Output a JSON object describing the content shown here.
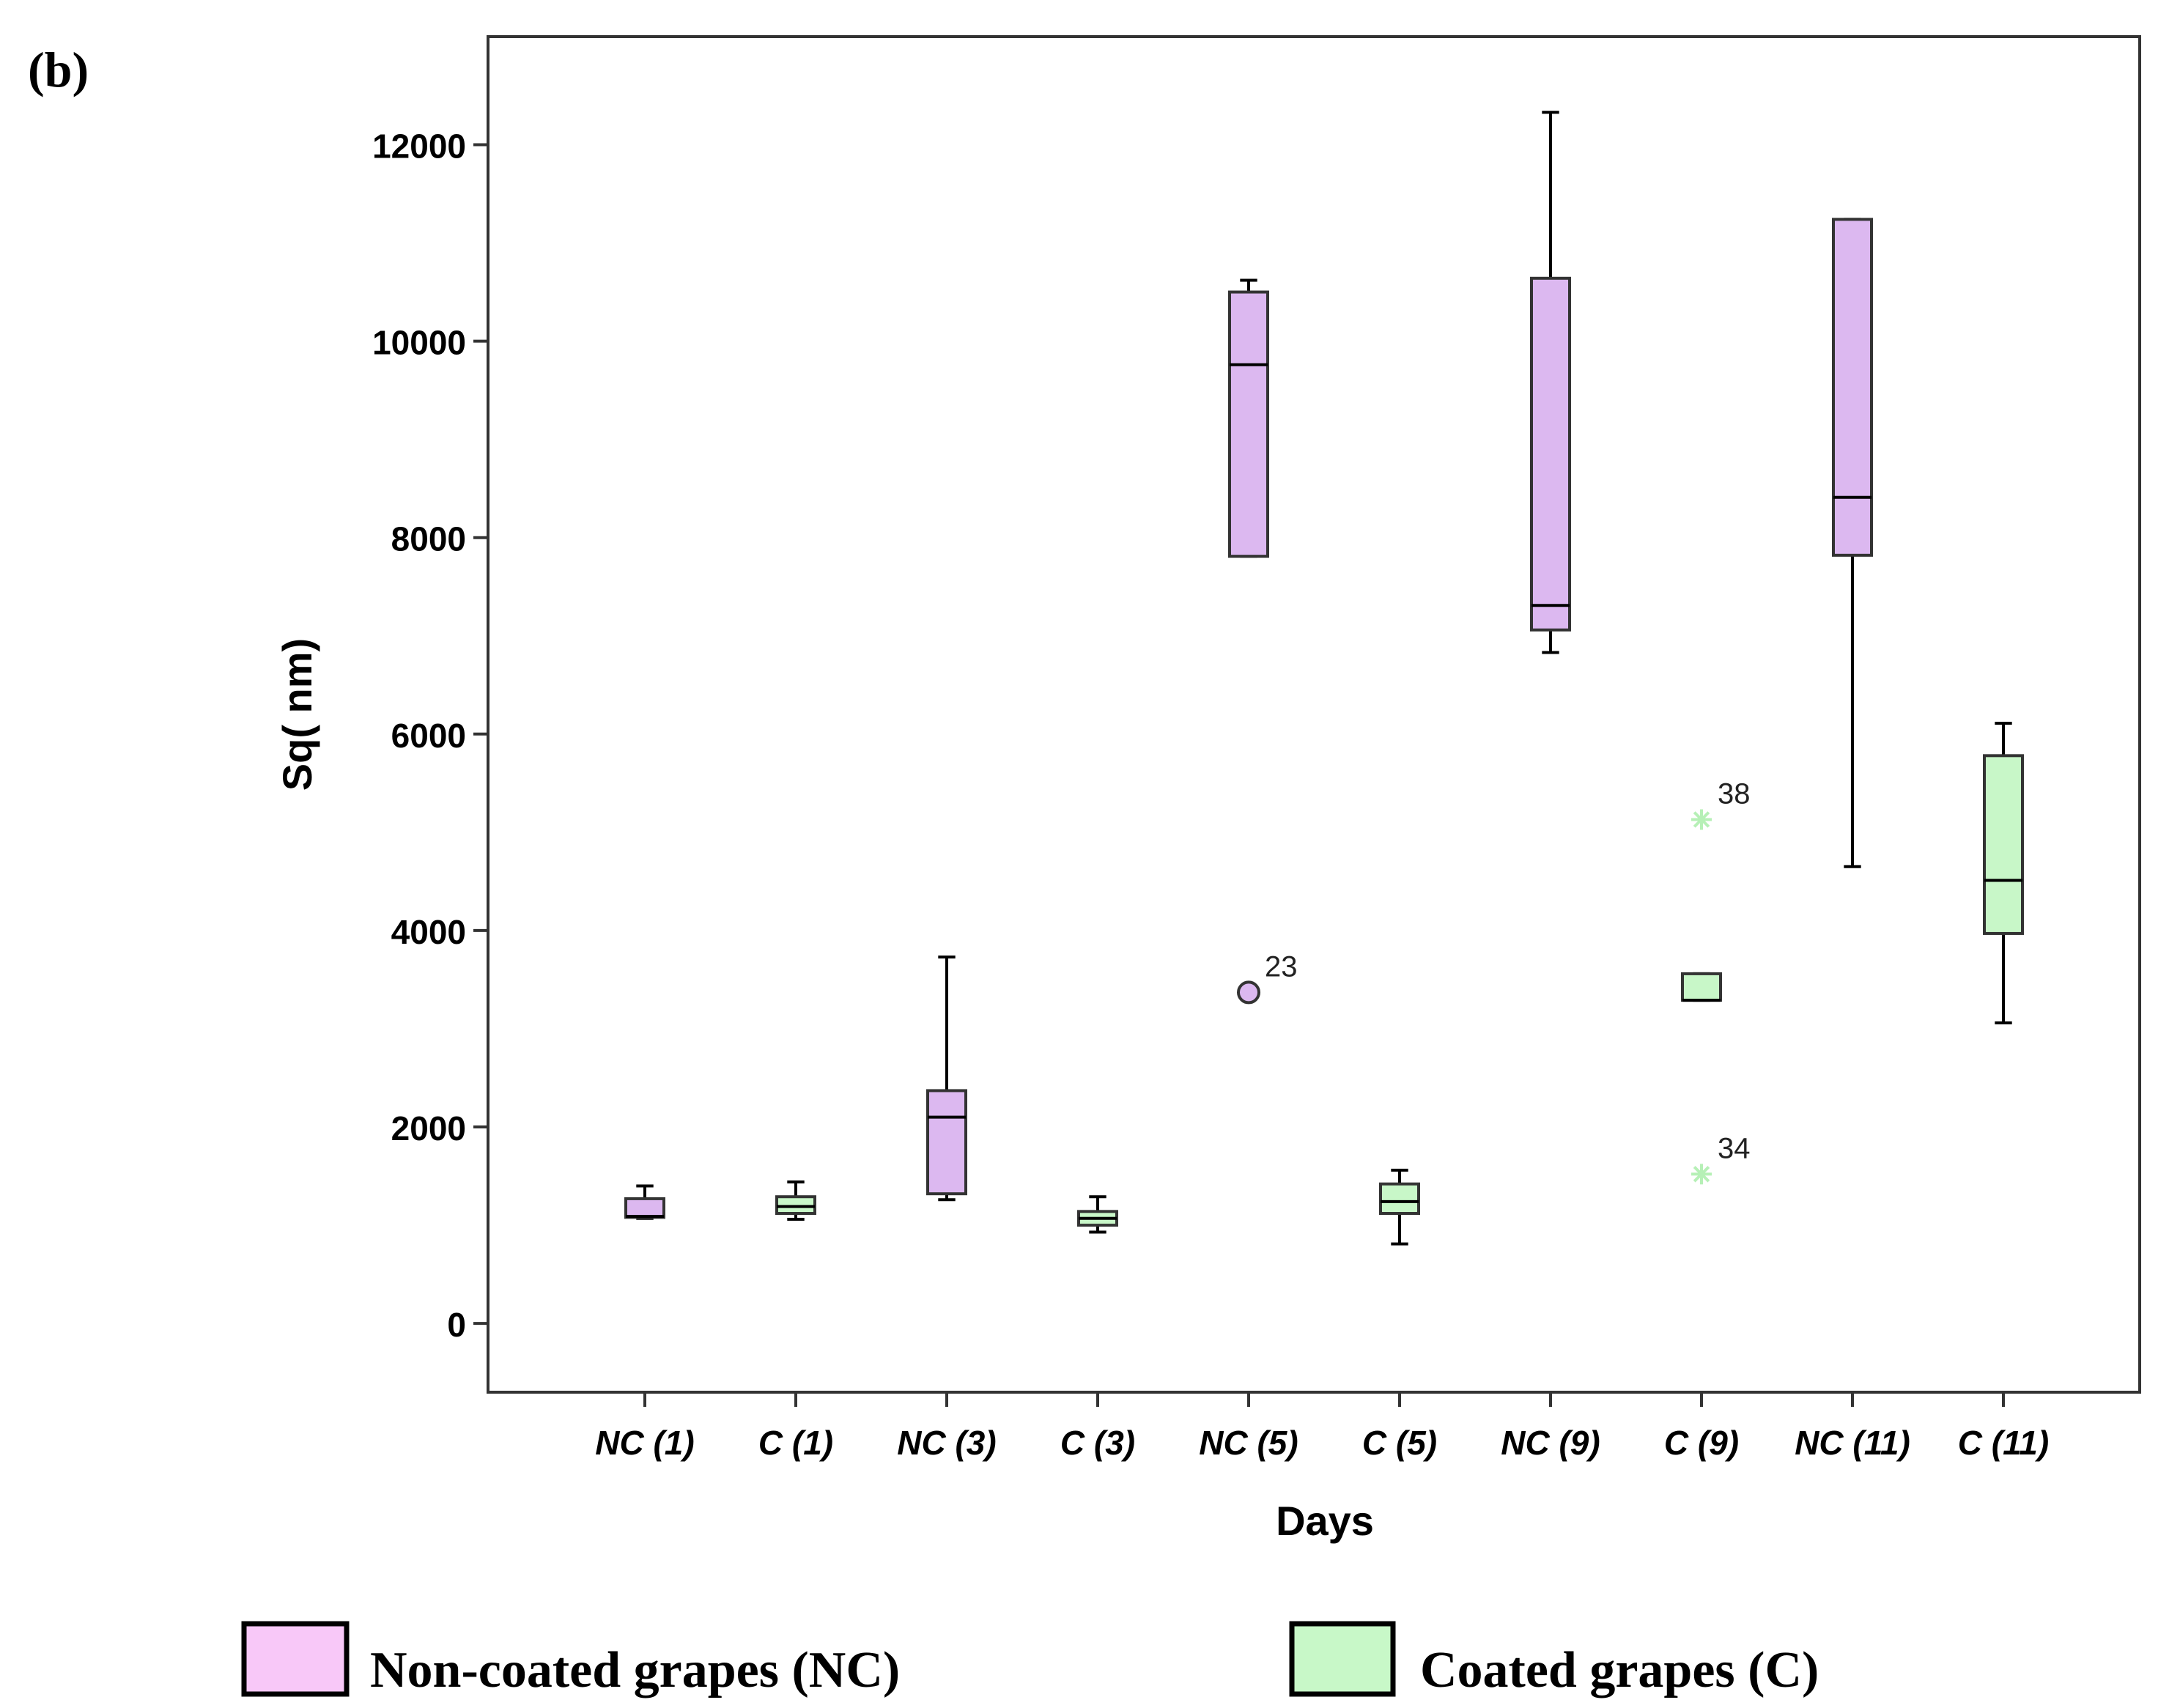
{
  "panel_label": "(b)",
  "colors": {
    "nc_fill": "#dcb8f0",
    "c_fill": "#c8f7c8",
    "outlier_c": "#b6f0b6",
    "legend_nc": "#f8c8f8",
    "legend_c": "#c8f8c8"
  },
  "legend": [
    {
      "key": "NC",
      "label": "Non-coated grapes (NC)"
    },
    {
      "key": "C",
      "label": "Coated grapes (C)"
    }
  ],
  "chart_data": {
    "type": "boxplot",
    "xlabel": "Days",
    "ylabel": "Sq( nm)",
    "ylim": [
      -700,
      13100
    ],
    "yticks": [
      0,
      2000,
      4000,
      6000,
      8000,
      10000,
      12000
    ],
    "categories": [
      "NC (1)",
      "C (1)",
      "NC (3)",
      "C (3)",
      "NC (5)",
      "C (5)",
      "NC (9)",
      "C (9)",
      "NC (11)",
      "C (11)"
    ],
    "boxes": [
      {
        "category": "NC (1)",
        "group": "NC",
        "min": 1070,
        "q1": 1080,
        "median": 1090,
        "q3": 1270,
        "max": 1400
      },
      {
        "category": "C (1)",
        "group": "C",
        "min": 1060,
        "q1": 1120,
        "median": 1190,
        "q3": 1290,
        "max": 1440
      },
      {
        "category": "NC (3)",
        "group": "NC",
        "min": 1260,
        "q1": 1320,
        "median": 2100,
        "q3": 2370,
        "max": 3730
      },
      {
        "category": "C (3)",
        "group": "C",
        "min": 930,
        "q1": 1000,
        "median": 1070,
        "q3": 1140,
        "max": 1290
      },
      {
        "category": "NC (5)",
        "group": "NC",
        "min": 7810,
        "q1": 7810,
        "median": 9760,
        "q3": 10500,
        "max": 10620
      },
      {
        "category": "C (5)",
        "group": "C",
        "min": 810,
        "q1": 1120,
        "median": 1240,
        "q3": 1420,
        "max": 1560
      },
      {
        "category": "NC (9)",
        "group": "NC",
        "min": 6830,
        "q1": 7060,
        "median": 7310,
        "q3": 10640,
        "max": 12330
      },
      {
        "category": "C (9)",
        "group": "C",
        "min": 3290,
        "q1": 3290,
        "median": 3290,
        "q3": 3560,
        "max": 3560
      },
      {
        "category": "NC (11)",
        "group": "NC",
        "min": 4650,
        "q1": 7820,
        "median": 8410,
        "q3": 11240,
        "max": 11240
      },
      {
        "category": "C (11)",
        "group": "C",
        "min": 3060,
        "q1": 3970,
        "median": 4510,
        "q3": 5780,
        "max": 6110
      }
    ],
    "outliers": [
      {
        "category": "NC (5)",
        "value": 3370,
        "label": "23",
        "marker": "circle"
      },
      {
        "category": "C (9)",
        "value": 5130,
        "label": "38",
        "marker": "star"
      },
      {
        "category": "C (9)",
        "value": 1520,
        "label": "34",
        "marker": "star"
      }
    ]
  }
}
